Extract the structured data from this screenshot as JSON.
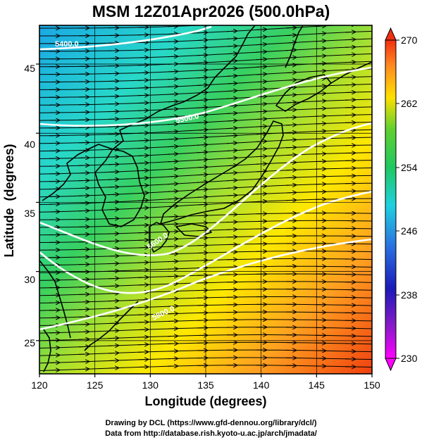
{
  "title": "MSM 12Z01Apr2026 (500.0hPa)",
  "map": {
    "xlabel": "Longitude (degrees)",
    "ylabel": "Latitude  (degrees)",
    "lon_range": [
      120,
      150
    ],
    "lat_range": [
      22.6,
      47.8
    ],
    "lon_ticks": [
      "120",
      "125",
      "130",
      "135",
      "140",
      "145",
      "150"
    ],
    "lat_ticks": [
      "25",
      "30",
      "35",
      "40",
      "45"
    ],
    "grid": true,
    "contour_labels": [
      "5400.0",
      "5500.0",
      "5600.0",
      "5800.0",
      "5900.0"
    ],
    "colors": {
      "contour": "#ffffff",
      "coast": "#000000",
      "vector": "#000000"
    }
  },
  "colorbar": {
    "ticks": [
      "270",
      "262",
      "254",
      "246",
      "238",
      "230"
    ],
    "min": 230,
    "max": 270,
    "colors": [
      "#ff00ff",
      "#1a1ab8",
      "#2a6ee0",
      "#20d8e0",
      "#20c860",
      "#40d030",
      "#b8e820",
      "#ffe000",
      "#ffa020",
      "#ff6a20",
      "#f23010"
    ]
  },
  "credits": {
    "line1": "Drawing by DCL (https://www.gfd-dennou.org/library/dcl/)",
    "line2": "Data from http://database.rish.kyoto-u.ac.jp/arch/jmadata/"
  }
}
